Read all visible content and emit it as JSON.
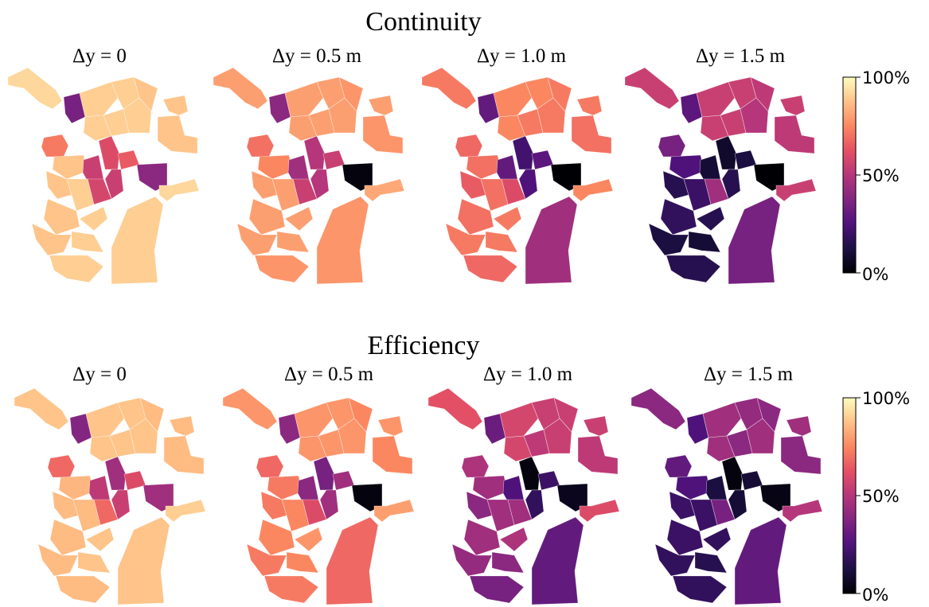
{
  "sections": [
    {
      "title": "Continuity",
      "colorbar": {
        "tick_labels": [
          "100%",
          "50%",
          "0%"
        ],
        "tick_values": [
          100,
          50,
          0
        ]
      },
      "panels": [
        {
          "label": "Δy = 0",
          "values": {
            "a": 92,
            "b": 35,
            "c": 90,
            "d": 90,
            "e": 88,
            "f": 88,
            "g": 88,
            "h": 90,
            "i": 90,
            "j": 90,
            "k": 72,
            "l": 88,
            "m": 55,
            "n": 60,
            "o": 65,
            "p": 55,
            "q": 58,
            "r": 40,
            "s": 88,
            "t": 90,
            "u": 88,
            "v": 90,
            "w": 92,
            "x": 88,
            "y": 90,
            "z": 90,
            "aa": 90
          }
        },
        {
          "label": "Δy = 0.5 m",
          "values": {
            "a": 80,
            "b": 40,
            "c": 80,
            "d": 80,
            "e": 78,
            "f": 80,
            "g": 78,
            "h": 80,
            "i": 80,
            "j": 80,
            "k": 70,
            "l": 75,
            "m": 45,
            "n": 50,
            "o": 55,
            "p": 50,
            "q": 55,
            "r": 2,
            "s": 80,
            "t": 80,
            "u": 80,
            "v": 80,
            "w": 82,
            "x": 80,
            "y": 80,
            "z": 78,
            "aa": 78
          }
        },
        {
          "label": "Δy = 1.0 m",
          "values": {
            "a": 72,
            "b": 30,
            "c": 75,
            "d": 75,
            "e": 72,
            "f": 72,
            "g": 70,
            "h": 75,
            "i": 72,
            "j": 72,
            "k": 68,
            "l": 70,
            "m": 30,
            "n": 22,
            "o": 28,
            "p": 25,
            "q": 60,
            "r": 0,
            "s": 65,
            "t": 70,
            "u": 70,
            "v": 72,
            "w": 75,
            "x": 72,
            "y": 72,
            "z": 68,
            "aa": 45
          }
        },
        {
          "label": "Δy = 1.5 m",
          "values": {
            "a": 55,
            "b": 28,
            "c": 55,
            "d": 55,
            "e": 52,
            "f": 55,
            "g": 52,
            "h": 55,
            "i": 55,
            "j": 50,
            "k": 35,
            "l": 25,
            "m": 10,
            "n": 8,
            "o": 12,
            "p": 15,
            "q": 45,
            "r": 0,
            "s": 15,
            "t": 20,
            "u": 18,
            "v": 15,
            "w": 55,
            "x": 12,
            "y": 10,
            "z": 15,
            "aa": 35
          }
        }
      ]
    },
    {
      "title": "Efficiency",
      "colorbar": {
        "tick_labels": [
          "100%",
          "50%",
          "0%"
        ],
        "tick_values": [
          100,
          50,
          0
        ]
      },
      "panels": [
        {
          "label": "Δy = 0",
          "values": {
            "a": 88,
            "b": 38,
            "c": 88,
            "d": 88,
            "e": 86,
            "f": 86,
            "g": 86,
            "h": 88,
            "i": 88,
            "j": 88,
            "k": 68,
            "l": 85,
            "m": 52,
            "n": 45,
            "o": 60,
            "p": 55,
            "q": 68,
            "r": 45,
            "s": 86,
            "t": 86,
            "u": 86,
            "v": 88,
            "w": 90,
            "x": 86,
            "y": 88,
            "z": 86,
            "aa": 88
          }
        },
        {
          "label": "Δy = 0.5 m",
          "values": {
            "a": 78,
            "b": 40,
            "c": 78,
            "d": 78,
            "e": 75,
            "f": 78,
            "g": 75,
            "h": 78,
            "i": 78,
            "j": 78,
            "k": 68,
            "l": 72,
            "m": 40,
            "n": 35,
            "o": 45,
            "p": 45,
            "q": 60,
            "r": 2,
            "s": 72,
            "t": 75,
            "u": 75,
            "v": 78,
            "w": 80,
            "x": 72,
            "y": 75,
            "z": 72,
            "aa": 68
          }
        },
        {
          "label": "Δy = 1.0 m",
          "values": {
            "a": 62,
            "b": 32,
            "c": 58,
            "d": 55,
            "e": 55,
            "f": 55,
            "g": 52,
            "h": 58,
            "i": 52,
            "j": 55,
            "k": 48,
            "l": 45,
            "m": 25,
            "n": 2,
            "o": 20,
            "p": 18,
            "q": 45,
            "r": 5,
            "s": 40,
            "t": 45,
            "u": 45,
            "v": 48,
            "w": 60,
            "x": 42,
            "y": 40,
            "z": 35,
            "aa": 30
          }
        },
        {
          "label": "Δy = 1.5 m",
          "values": {
            "a": 40,
            "b": 25,
            "c": 45,
            "d": 42,
            "e": 40,
            "f": 45,
            "g": 40,
            "h": 45,
            "i": 40,
            "j": 45,
            "k": 30,
            "l": 25,
            "m": 12,
            "n": 2,
            "o": 10,
            "p": 10,
            "q": 35,
            "r": 3,
            "s": 20,
            "t": 20,
            "u": 20,
            "v": 18,
            "w": 50,
            "x": 18,
            "y": 15,
            "z": 18,
            "aa": 30
          }
        }
      ]
    }
  ]
}
